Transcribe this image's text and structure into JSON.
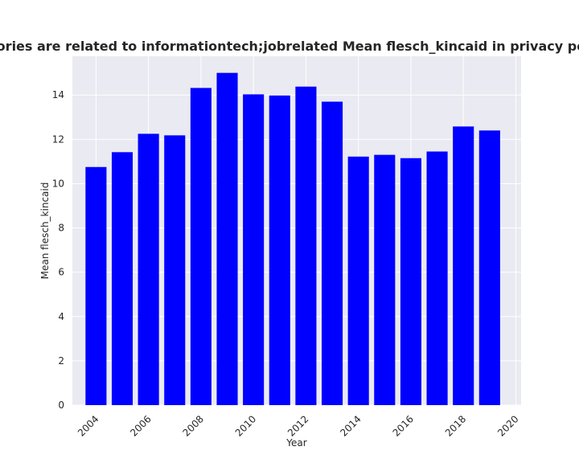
{
  "chart_data": {
    "type": "bar",
    "title": "Mean flesch_kincaid of privacy policies (domain categories are related to informationtech;jobrelated Mean flesch_kincaid in privacy policies by year)",
    "title_visible": "n categories are related to informationtech;jobrelated Mean flesch_kincaid in privacy policies b",
    "xlabel": "Year",
    "ylabel": "Mean flesch_kincaid",
    "x": [
      2004,
      2005,
      2006,
      2007,
      2008,
      2009,
      2010,
      2011,
      2012,
      2013,
      2014,
      2015,
      2016,
      2017,
      2018,
      2019
    ],
    "values": [
      10.75,
      11.42,
      12.25,
      12.18,
      14.32,
      15.0,
      14.03,
      13.98,
      14.38,
      13.7,
      11.22,
      11.3,
      11.15,
      11.45,
      12.58,
      12.4
    ],
    "xticks": [
      "2004",
      "2006",
      "2008",
      "2010",
      "2012",
      "2014",
      "2016",
      "2018",
      "2020"
    ],
    "xlim": [
      2003.1,
      2020.2
    ],
    "yticks": [
      "0",
      "2",
      "4",
      "6",
      "8",
      "10",
      "12",
      "14"
    ],
    "ylim": [
      0,
      15.75
    ],
    "bar_color": "#0000ff",
    "background_color": "#eaeaf2",
    "grid_color": "#ffffff",
    "grid": true
  }
}
